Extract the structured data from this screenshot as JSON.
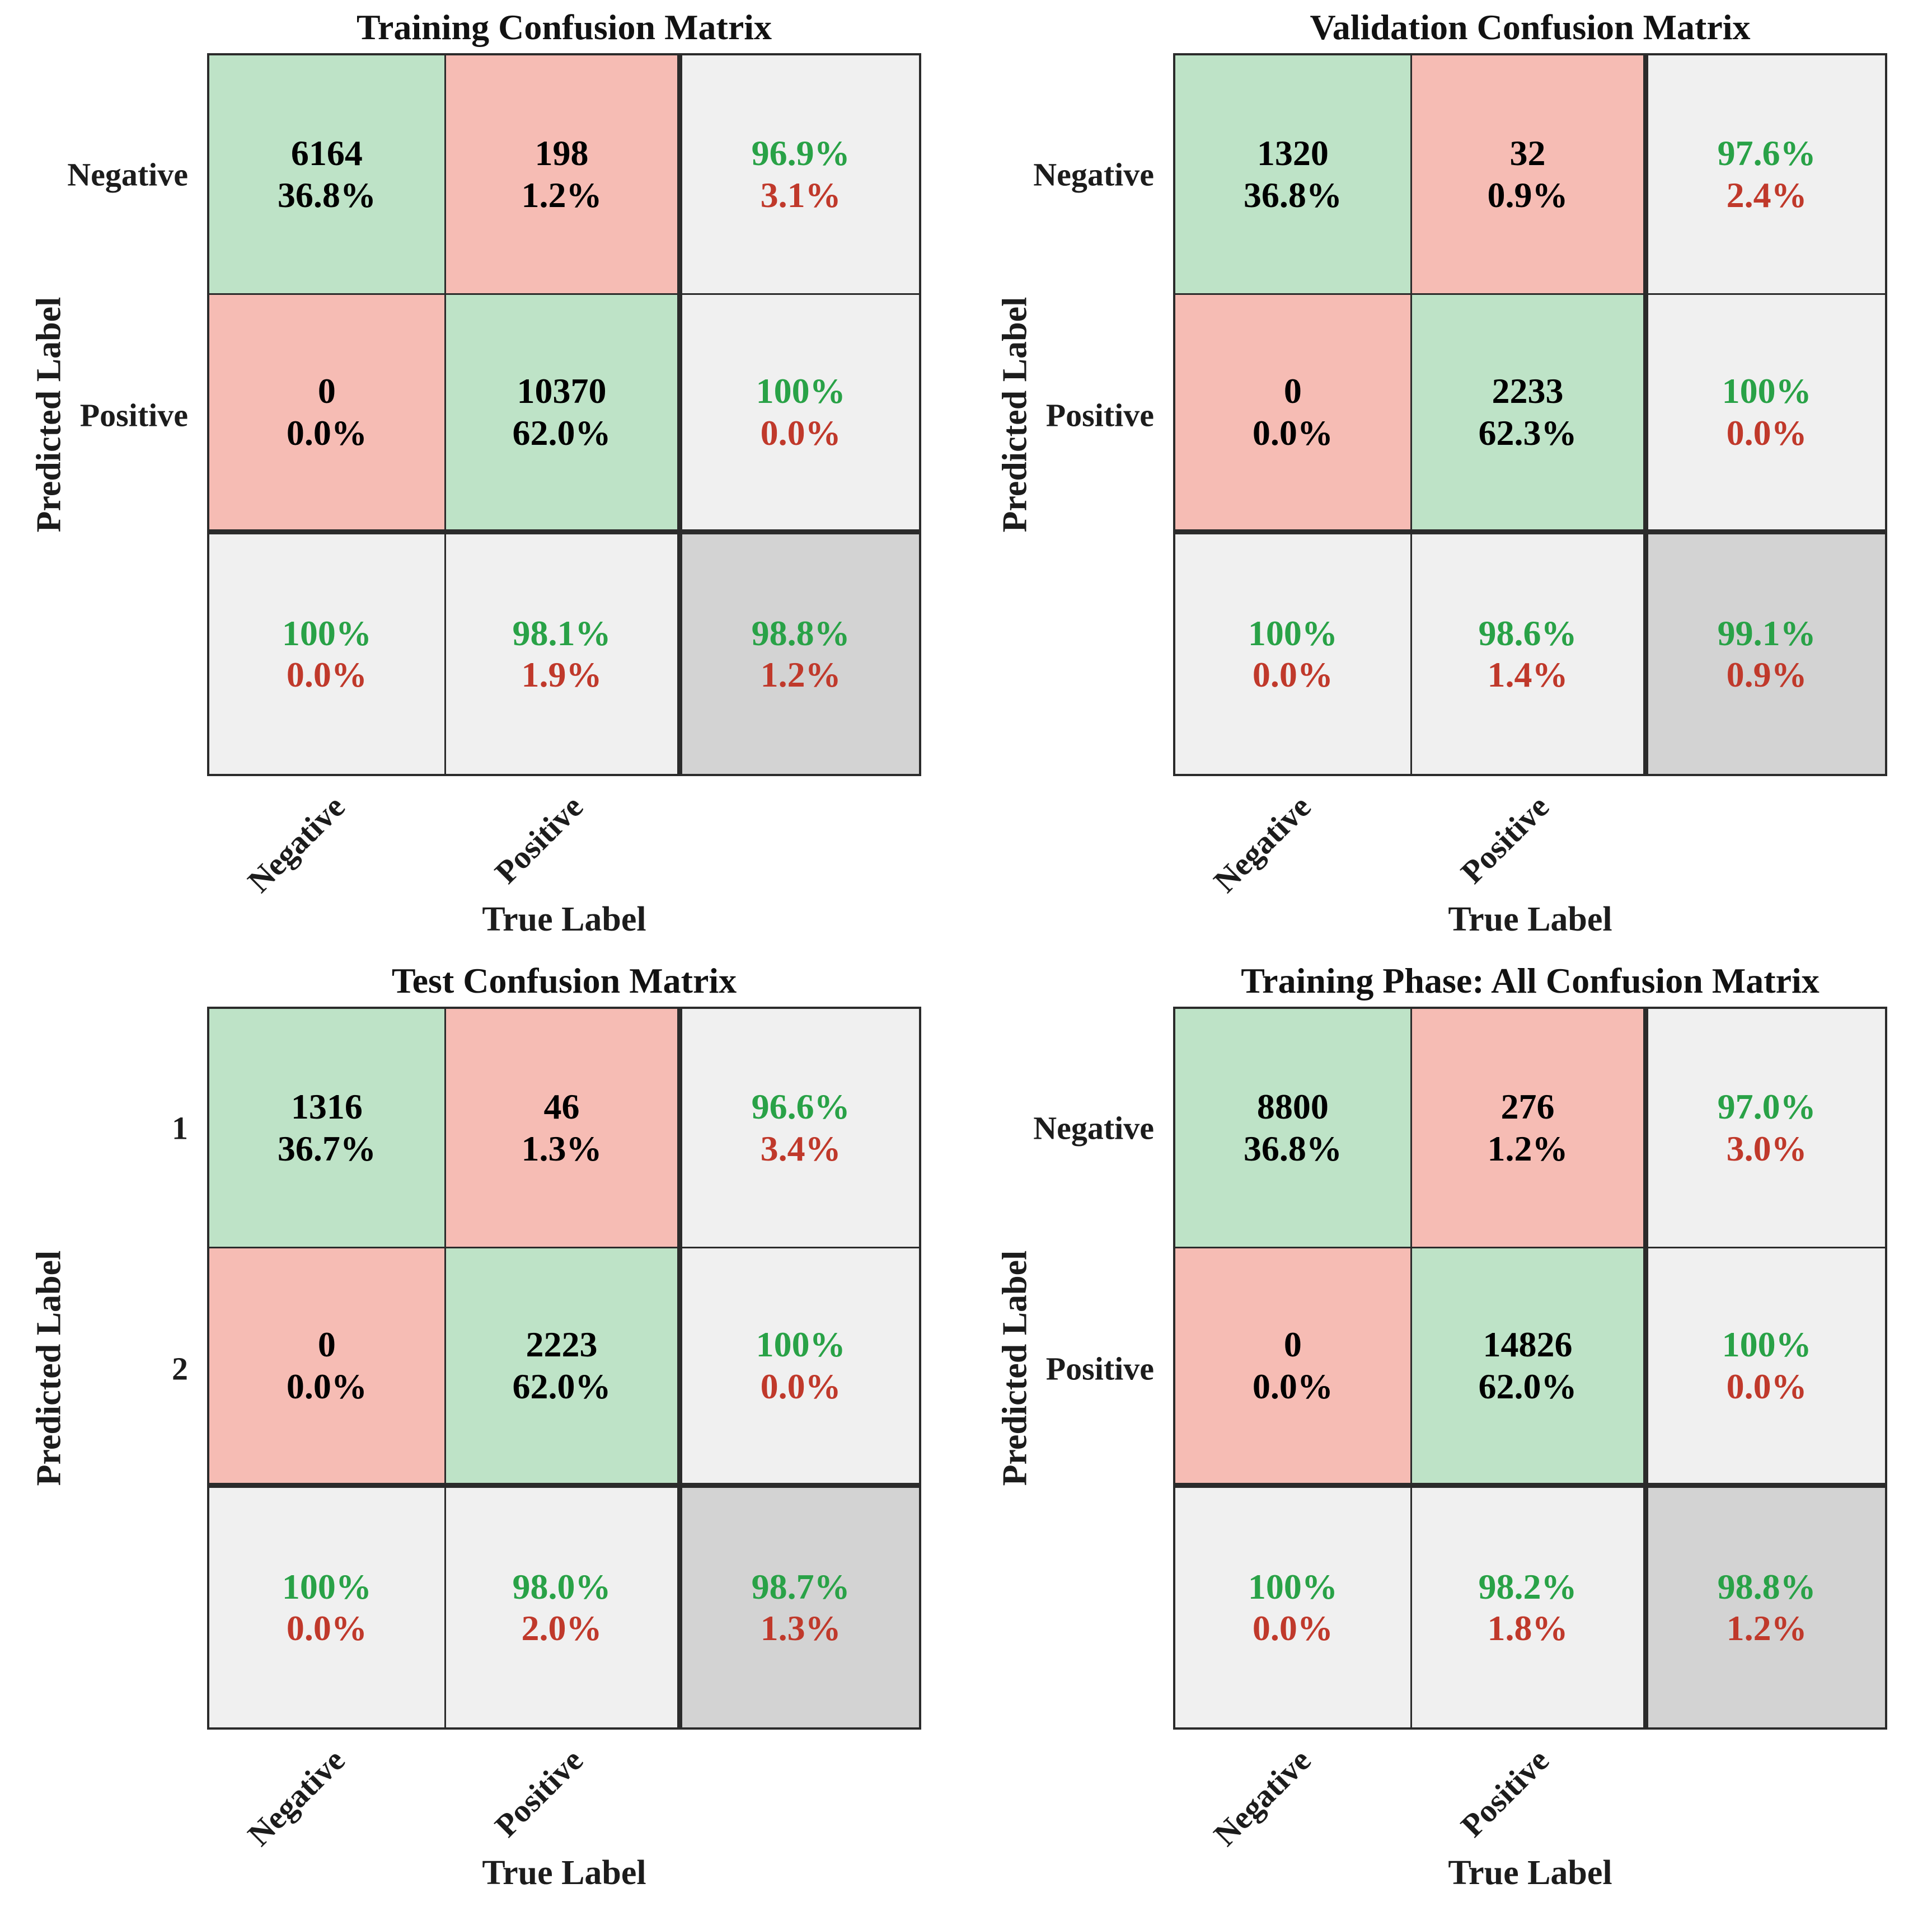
{
  "palette": {
    "correct_cell_green": "#bee3c7",
    "error_cell_pink": "#f6bcb4",
    "summary_cell_gray": "#f0f0f0",
    "total_cell_gray": "#d3d3d3",
    "summary_text_green": "#29a247",
    "summary_text_red": "#c0392b",
    "grid_line": "#2b2b2b"
  },
  "chart_data": [
    {
      "type": "heatmap",
      "title": "Training Confusion Matrix",
      "xlabel": "True Label",
      "ylabel": "Predicted Label",
      "x_tick_labels": [
        "Negative",
        "Positive"
      ],
      "y_tick_labels": [
        "Negative",
        "Positive"
      ],
      "counts": [
        [
          6164,
          198
        ],
        [
          0,
          10370
        ]
      ],
      "count_pcts": [
        [
          "36.8%",
          "1.2%"
        ],
        [
          "0.0%",
          "62.0%"
        ]
      ],
      "row_summary": [
        [
          "96.9%",
          "3.1%"
        ],
        [
          "100%",
          "0.0%"
        ]
      ],
      "col_summary": [
        [
          "100%",
          "0.0%"
        ],
        [
          "98.1%",
          "1.9%"
        ]
      ],
      "overall": [
        "98.8%",
        "1.2%"
      ]
    },
    {
      "type": "heatmap",
      "title": "Validation Confusion Matrix",
      "xlabel": "True Label",
      "ylabel": "Predicted Label",
      "x_tick_labels": [
        "Negative",
        "Positive"
      ],
      "y_tick_labels": [
        "Negative",
        "Positive"
      ],
      "counts": [
        [
          1320,
          32
        ],
        [
          0,
          2233
        ]
      ],
      "count_pcts": [
        [
          "36.8%",
          "0.9%"
        ],
        [
          "0.0%",
          "62.3%"
        ]
      ],
      "row_summary": [
        [
          "97.6%",
          "2.4%"
        ],
        [
          "100%",
          "0.0%"
        ]
      ],
      "col_summary": [
        [
          "100%",
          "0.0%"
        ],
        [
          "98.6%",
          "1.4%"
        ]
      ],
      "overall": [
        "99.1%",
        "0.9%"
      ]
    },
    {
      "type": "heatmap",
      "title": "Test Confusion Matrix",
      "xlabel": "True Label",
      "ylabel": "Predicted Label",
      "x_tick_labels": [
        "Negative",
        "Positive"
      ],
      "y_tick_labels": [
        "1",
        "2"
      ],
      "counts": [
        [
          1316,
          46
        ],
        [
          0,
          2223
        ]
      ],
      "count_pcts": [
        [
          "36.7%",
          "1.3%"
        ],
        [
          "0.0%",
          "62.0%"
        ]
      ],
      "row_summary": [
        [
          "96.6%",
          "3.4%"
        ],
        [
          "100%",
          "0.0%"
        ]
      ],
      "col_summary": [
        [
          "100%",
          "0.0%"
        ],
        [
          "98.0%",
          "2.0%"
        ]
      ],
      "overall": [
        "98.7%",
        "1.3%"
      ]
    },
    {
      "type": "heatmap",
      "title": "Training Phase: All Confusion Matrix",
      "xlabel": "True Label",
      "ylabel": "Predicted Label",
      "x_tick_labels": [
        "Negative",
        "Positive"
      ],
      "y_tick_labels": [
        "Negative",
        "Positive"
      ],
      "counts": [
        [
          8800,
          276
        ],
        [
          0,
          14826
        ]
      ],
      "count_pcts": [
        [
          "36.8%",
          "1.2%"
        ],
        [
          "0.0%",
          "62.0%"
        ]
      ],
      "row_summary": [
        [
          "97.0%",
          "3.0%"
        ],
        [
          "100%",
          "0.0%"
        ]
      ],
      "col_summary": [
        [
          "100%",
          "0.0%"
        ],
        [
          "98.2%",
          "1.8%"
        ]
      ],
      "overall": [
        "98.8%",
        "1.2%"
      ]
    }
  ]
}
